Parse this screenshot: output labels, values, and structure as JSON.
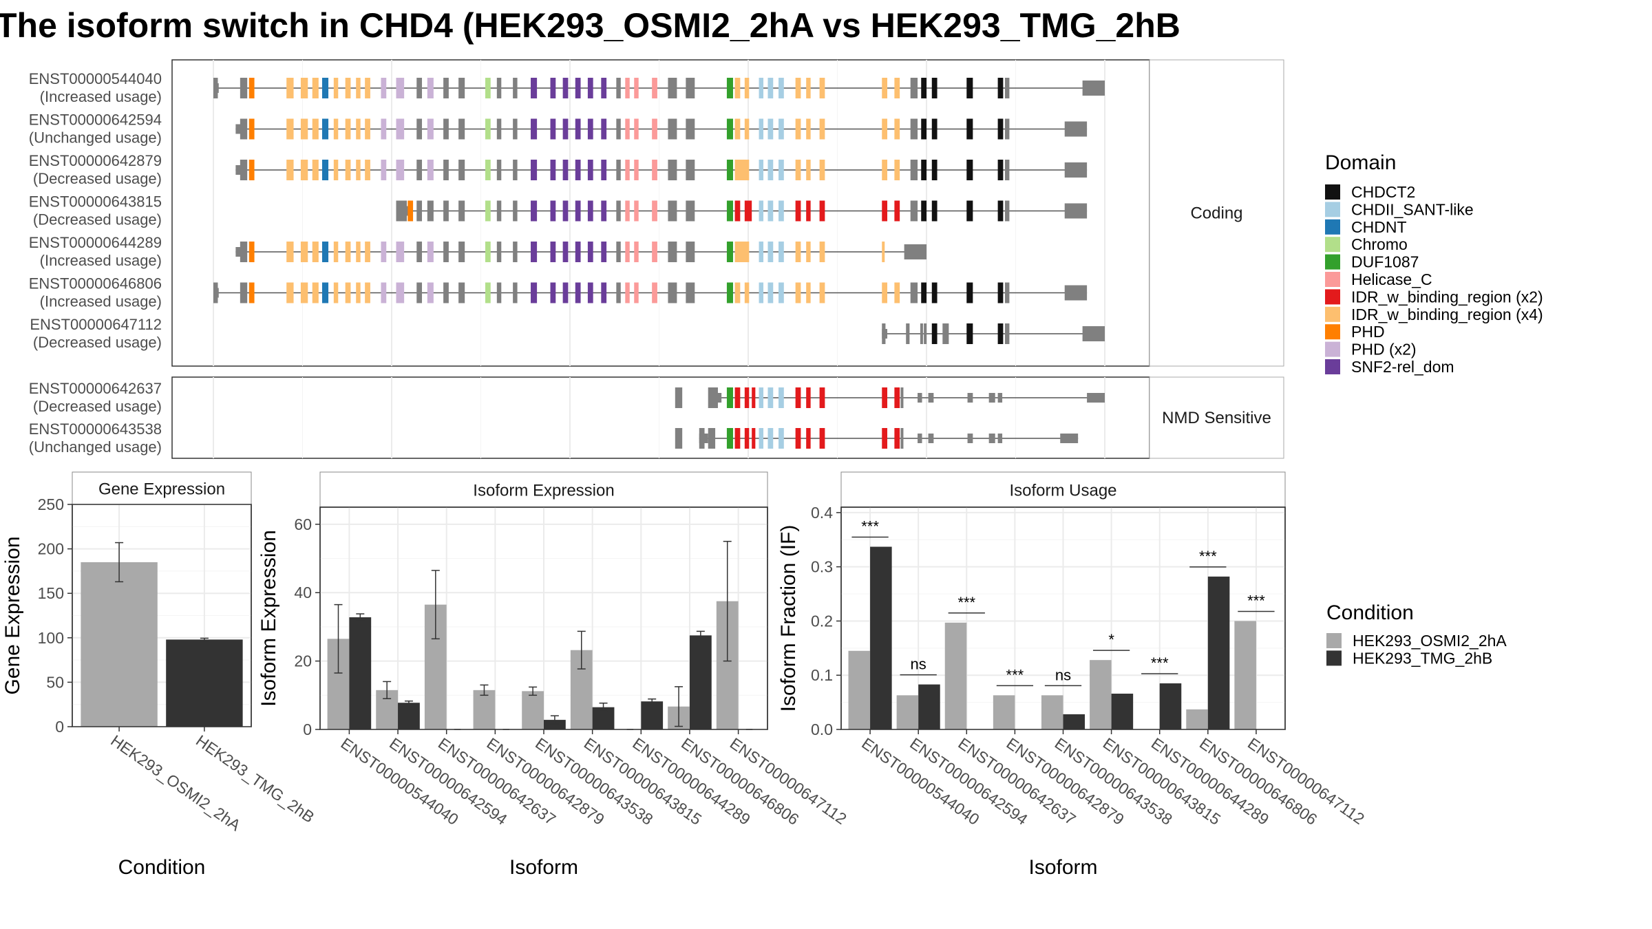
{
  "title": "The isoform switch in CHD4 (HEK293_OSMI2_2hA vs HEK293_TMG_2hB",
  "colors": {
    "osmi": "#a9a9a9",
    "tmg": "#333333",
    "exon_gray": "#808080",
    "domains": {
      "CHDCT2": "#111111",
      "CHDII_SANT-like": "#a6cee3",
      "CHDNT": "#1f78b4",
      "Chromo": "#b2df8a",
      "DUF1087": "#33a02c",
      "Helicase_C": "#fb9a99",
      "IDR_w_binding_region (x2)": "#e31a1c",
      "IDR_w_binding_region (x4)": "#fdbf6f",
      "PHD": "#ff7f00",
      "PHD (x2)": "#cab2d6",
      "SNF2-rel_dom": "#6a3d9a"
    }
  },
  "structure": {
    "coding_label": "Coding",
    "nmd_label": "NMD Sensitive",
    "coding_isoforms": [
      {
        "id": "ENST00000544040",
        "usage": "(Increased usage)",
        "start": 0.0,
        "end": 1.0,
        "type": "full"
      },
      {
        "id": "ENST00000642594",
        "usage": "(Unchanged usage)",
        "start": 0.025,
        "end": 0.98,
        "type": "full"
      },
      {
        "id": "ENST00000642879",
        "usage": "(Decreased usage)",
        "start": 0.025,
        "end": 0.98,
        "type": "full_wide"
      },
      {
        "id": "ENST00000643815",
        "usage": "(Decreased usage)",
        "start": 0.215,
        "end": 0.98,
        "type": "phd_red"
      },
      {
        "id": "ENST00000644289",
        "usage": "(Increased usage)",
        "start": 0.025,
        "end": 0.8,
        "type": "truncated"
      },
      {
        "id": "ENST00000646806",
        "usage": "(Increased usage)",
        "start": 0.0,
        "end": 0.98,
        "type": "full"
      },
      {
        "id": "ENST00000647112",
        "usage": "(Decreased usage)",
        "start": 0.75,
        "end": 1.0,
        "type": "tail"
      }
    ],
    "nmd_isoforms": [
      {
        "id": "ENST00000642637",
        "usage": "(Decreased usage)",
        "start": 0.56,
        "end": 1.0,
        "type": "nmd"
      },
      {
        "id": "ENST00000643538",
        "usage": "(Unchanged usage)",
        "start": 0.545,
        "end": 0.97,
        "type": "nmd"
      }
    ],
    "domain_legend_title": "Domain",
    "domain_legend": [
      "CHDCT2",
      "CHDII_SANT-like",
      "CHDNT",
      "Chromo",
      "DUF1087",
      "Helicase_C",
      "IDR_w_binding_region (x2)",
      "IDR_w_binding_region (x4)",
      "PHD",
      "PHD (x2)",
      "SNF2-rel_dom"
    ]
  },
  "condition_legend": {
    "title": "Condition",
    "items": [
      "HEK293_OSMI2_2hA",
      "HEK293_TMG_2hB"
    ]
  },
  "chart_data": [
    {
      "type": "bar",
      "title": "Gene Expression",
      "xlabel": "Condition",
      "ylabel": "Gene Expression",
      "ylim": [
        0,
        250
      ],
      "yticks": [
        0,
        50,
        100,
        150,
        200,
        250
      ],
      "categories": [
        "HEK293_OSMI2_2hA",
        "HEK293_TMG_2hB"
      ],
      "values": [
        185,
        98
      ],
      "errors": [
        22,
        1.5
      ]
    },
    {
      "type": "bar",
      "title": "Isoform Expression",
      "xlabel": "Isoform",
      "ylabel": "Isoform Expression",
      "ylim": [
        0,
        65
      ],
      "yticks": [
        0,
        20,
        40,
        60
      ],
      "categories": [
        "ENST00000544040",
        "ENST00000642594",
        "ENST00000642637",
        "ENST00000642879",
        "ENST00000643538",
        "ENST00000643815",
        "ENST00000644289",
        "ENST00000646806",
        "ENST00000647112"
      ],
      "series": [
        {
          "name": "HEK293_OSMI2_2hA",
          "values": [
            26.5,
            11.5,
            36.5,
            11.5,
            11.2,
            23.2,
            0,
            6.7,
            37.5
          ],
          "errors": [
            10,
            2.5,
            10,
            1.5,
            1.2,
            5.5,
            0,
            5.8,
            17.5
          ]
        },
        {
          "name": "HEK293_TMG_2hB",
          "values": [
            32.8,
            7.8,
            0,
            0,
            2.8,
            6.5,
            8.2,
            27.5,
            0
          ],
          "errors": [
            1,
            0.5,
            0,
            0,
            1.2,
            1.2,
            0.7,
            1.2,
            0
          ]
        }
      ]
    },
    {
      "type": "bar",
      "title": "Isoform Usage",
      "xlabel": "Isoform",
      "ylabel": "Isoform Fraction (IF)",
      "ylim": [
        0,
        0.41
      ],
      "yticks": [
        0.0,
        0.1,
        0.2,
        0.3,
        0.4
      ],
      "categories": [
        "ENST00000544040",
        "ENST00000642594",
        "ENST00000642637",
        "ENST00000642879",
        "ENST00000643538",
        "ENST00000643815",
        "ENST00000644289",
        "ENST00000646806",
        "ENST00000647112"
      ],
      "series": [
        {
          "name": "HEK293_OSMI2_2hA",
          "values": [
            0.145,
            0.063,
            0.197,
            0.063,
            0.063,
            0.128,
            0.0,
            0.037,
            0.2
          ]
        },
        {
          "name": "HEK293_TMG_2hB",
          "values": [
            0.337,
            0.083,
            0.0,
            0.0,
            0.028,
            0.066,
            0.085,
            0.282,
            0.0
          ]
        }
      ],
      "significance": [
        "***",
        "ns",
        "***",
        "***",
        "ns",
        "*",
        "***",
        "***",
        "***"
      ]
    }
  ]
}
